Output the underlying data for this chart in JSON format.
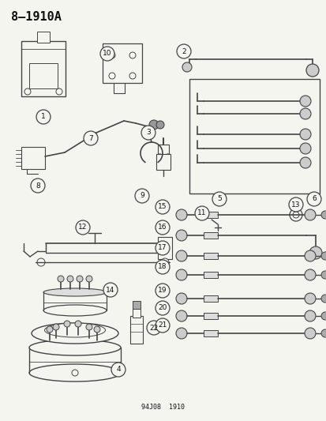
{
  "title": "8–1910A",
  "footer": "94J08  1910",
  "bg": "#f5f5f0",
  "lc": "#444444",
  "tc": "#111111",
  "figsize": [
    4.14,
    5.33
  ],
  "dpi": 100
}
